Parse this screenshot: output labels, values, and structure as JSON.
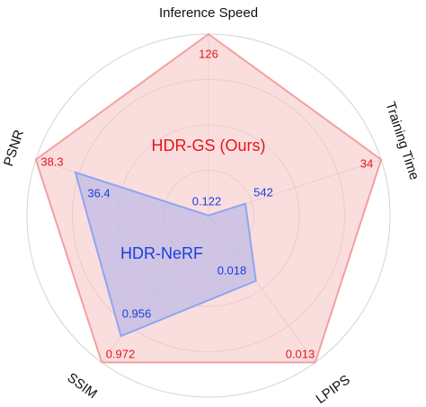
{
  "chart_data": {
    "type": "radar",
    "axes": [
      {
        "name": "Inference Speed",
        "lim": [
          0,
          126
        ]
      },
      {
        "name": "Training Time",
        "lim": [
          680,
          34
        ]
      },
      {
        "name": "LPIPS",
        "lim": [
          0.022,
          0.013
        ]
      },
      {
        "name": "SSIM",
        "lim": [
          0.883,
          0.972
        ]
      },
      {
        "name": "PSNR",
        "lim": [
          30,
          38.3
        ]
      }
    ],
    "series": [
      {
        "name": "HDR-GS (Ours)",
        "color": "#e8141c",
        "values": [
          126,
          34,
          0.013,
          0.972,
          38.3
        ]
      },
      {
        "name": "HDR-NeRF",
        "color": "#1a3ee0",
        "values": [
          0.122,
          542,
          0.018,
          0.956,
          36.4
        ]
      }
    ]
  }
}
